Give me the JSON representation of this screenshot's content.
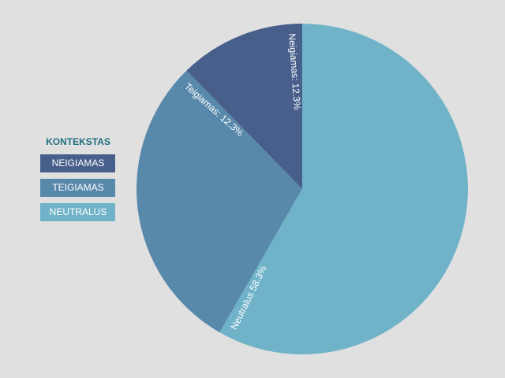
{
  "chart_data": {
    "type": "pie",
    "legend_title": "KONTEKSTAS",
    "categories": [
      "NEIGIAMAS",
      "TEIGIAMAS",
      "NEUTRALUS"
    ],
    "values": [
      12.3,
      12.3,
      58.3
    ],
    "value_labels": [
      "Neigiamas: 12.3%",
      "Teigiamas: 12.3%",
      "Neutralus 58.3%"
    ],
    "colors": [
      "#475f8a",
      "#5889ab",
      "#70b3c9"
    ],
    "legend": "left"
  }
}
